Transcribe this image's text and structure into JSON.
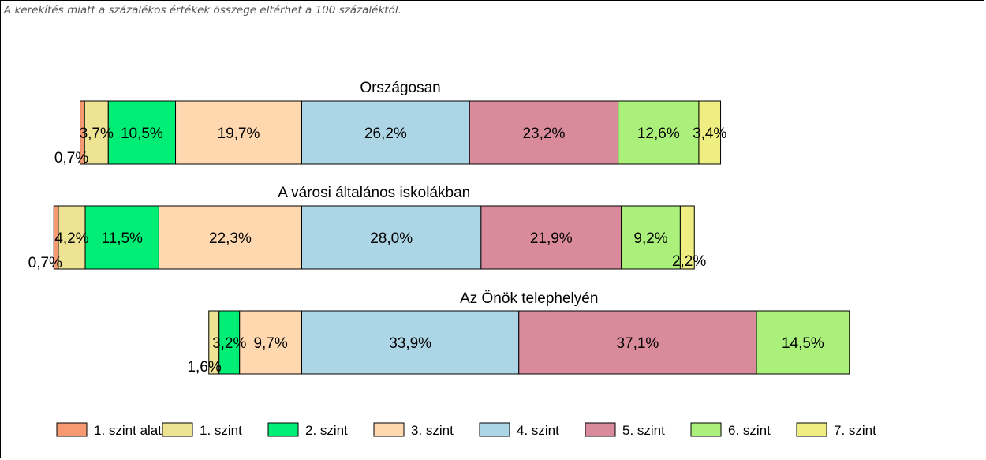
{
  "note": "A kerekítés miatt a  százalékos értékek összege eltérhet a 100 százaléktól.",
  "chart_data": {
    "type": "bar",
    "orientation": "horizontal",
    "stacked": true,
    "levels": [
      "1. szint alatti",
      "1. szint",
      "2. szint",
      "3. szint",
      "4. szint",
      "5. szint",
      "6. szint",
      "7. szint"
    ],
    "colors": [
      "#f79a72",
      "#ede392",
      "#00ee76",
      "#ffd8b0",
      "#acd5e5",
      "#d98b9b",
      "#aaf07a",
      "#efee82"
    ],
    "bars": [
      {
        "title": "Országosan",
        "values": [
          0.7,
          3.7,
          10.5,
          19.7,
          26.2,
          23.2,
          12.6,
          3.4
        ],
        "labels": [
          "0,7%",
          "3,7%",
          "10,5%",
          "19,7%",
          "26,2%",
          "23,2%",
          "12,6%",
          "3,4%"
        ]
      },
      {
        "title": "A városi általános iskolákban",
        "values": [
          0.7,
          4.2,
          11.5,
          22.3,
          28.0,
          21.9,
          9.2,
          2.2
        ],
        "labels": [
          "0,7%",
          "4,2%",
          "11,5%",
          "22,3%",
          "28,0%",
          "21,9%",
          "9,2%",
          "2,2%"
        ]
      },
      {
        "title": "Az Önök telephelyén",
        "values": [
          0,
          1.6,
          3.2,
          9.7,
          33.9,
          37.1,
          14.5,
          0
        ],
        "labels": [
          "",
          "1,6%",
          "3,2%",
          "9,7%",
          "33,9%",
          "37,1%",
          "14,5%",
          ""
        ]
      }
    ],
    "legend_position": "bottom"
  }
}
